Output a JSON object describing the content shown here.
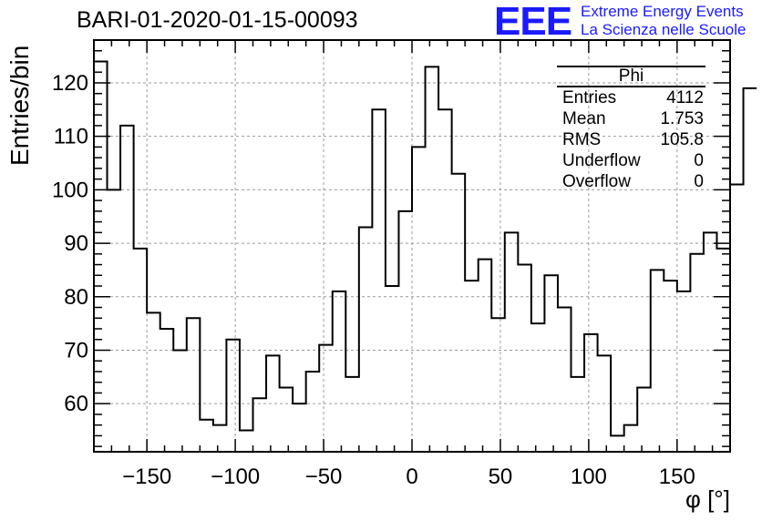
{
  "title": "BARI-01-2020-01-15-00093",
  "logo": {
    "mark": "EEE",
    "line1": "Extreme Energy Events",
    "line2": "La Scienza nelle Scuole"
  },
  "stats": {
    "name": "Phi",
    "rows": [
      {
        "label": "Entries",
        "value": "4112"
      },
      {
        "label": "Mean",
        "value": "1.753"
      },
      {
        "label": "RMS",
        "value": "105.8"
      },
      {
        "label": "Underflow",
        "value": "0"
      },
      {
        "label": "Overflow",
        "value": "0"
      }
    ]
  },
  "colors": {
    "line": "#000000",
    "grid": "#9a9a9a",
    "logo": "#1a1aff"
  },
  "chart_data": {
    "type": "histogram",
    "xlabel": "φ [°]",
    "ylabel": "Entries/bin",
    "xlim": [
      -180,
      180
    ],
    "ylim": [
      51,
      128
    ],
    "grid": true,
    "xticks": [
      -150,
      -100,
      -50,
      0,
      50,
      100,
      150
    ],
    "xtick_labels": [
      "−150",
      "−100",
      "−50",
      "0",
      "50",
      "100",
      "150"
    ],
    "yticks": [
      60,
      70,
      80,
      90,
      100,
      110,
      120
    ],
    "bin_width": 7.5,
    "bin_edges_start": -180,
    "values": [
      124,
      100,
      112,
      89,
      77,
      74,
      70,
      76,
      57,
      56,
      72,
      55,
      61,
      69,
      63,
      60,
      66,
      71,
      81,
      65,
      93,
      115,
      82,
      96,
      108,
      123,
      115,
      103,
      83,
      87,
      76,
      92,
      86,
      75,
      84,
      78,
      65,
      73,
      69,
      54,
      56,
      63,
      85,
      83,
      81,
      88,
      92,
      89,
      101,
      119
    ]
  }
}
